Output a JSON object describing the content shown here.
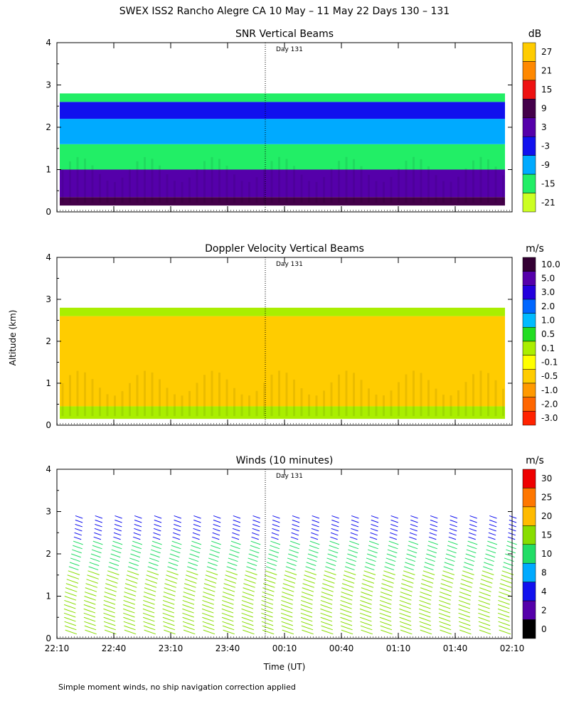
{
  "title": "SWEX ISS2 Rancho Alegre CA  10 May – 11 May 22 Days 130 – 131",
  "ylabel": "Altitude (km)",
  "xlabel": "Time (UT)",
  "footnote": "Simple moment winds, no ship navigation correction applied",
  "day_marker": "Day 131",
  "chart_data": [
    {
      "type": "heatmap",
      "title": "SNR Vertical Beams",
      "unit": "dB",
      "y_ticks": [
        "0",
        "1",
        "2",
        "3",
        "4"
      ],
      "ylim": [
        0,
        4
      ],
      "x_ticks": [
        "22:10",
        "22:40",
        "23:10",
        "23:40",
        "00:10",
        "00:40",
        "01:10",
        "01:40",
        "02:10"
      ],
      "colorbar_labels": [
        "27",
        "21",
        "15",
        "9",
        "3",
        "-3",
        "-9",
        "-15",
        "-21"
      ],
      "colorbar_colors": [
        "#ffcc00",
        "#ff8800",
        "#ee1111",
        "#44004a",
        "#5500aa",
        "#1111ee",
        "#00aaff",
        "#22ee66",
        "#ccff22"
      ],
      "data_top_km": 2.8,
      "data_bottom_km": 0.15,
      "layers": [
        {
          "km_from": 0.15,
          "km_to": 0.35,
          "value_db": 9
        },
        {
          "km_from": 0.35,
          "km_to": 1.0,
          "value_db": 3
        },
        {
          "km_from": 1.0,
          "km_to": 1.6,
          "value_db": -15
        },
        {
          "km_from": 1.6,
          "km_to": 2.2,
          "value_db": -9
        },
        {
          "km_from": 2.2,
          "km_to": 2.6,
          "value_db": -3
        },
        {
          "km_from": 2.6,
          "km_to": 2.8,
          "value_db": -15
        }
      ]
    },
    {
      "type": "heatmap",
      "title": "Doppler Velocity Vertical Beams",
      "unit": "m/s",
      "y_ticks": [
        "0",
        "1",
        "2",
        "3",
        "4"
      ],
      "ylim": [
        0,
        4
      ],
      "x_ticks": [
        "22:10",
        "22:40",
        "23:10",
        "23:40",
        "00:10",
        "00:40",
        "01:10",
        "01:40",
        "02:10"
      ],
      "colorbar_labels": [
        "10.0",
        "5.0",
        "3.0",
        "2.0",
        "1.0",
        "0.5",
        "0.1",
        "-0.1",
        "-0.5",
        "-1.0",
        "-2.0",
        "-3.0"
      ],
      "colorbar_colors": [
        "#330033",
        "#5500aa",
        "#2200dd",
        "#0066ff",
        "#00bbff",
        "#22dd22",
        "#aaee00",
        "#ffff00",
        "#ffcc00",
        "#ff9900",
        "#ff6600",
        "#ff2200"
      ],
      "data_top_km": 2.8,
      "data_bottom_km": 0.15,
      "layers": [
        {
          "km_from": 0.15,
          "km_to": 0.45,
          "value_ms": 0.0
        },
        {
          "km_from": 0.45,
          "km_to": 2.6,
          "value_ms": -0.5
        },
        {
          "km_from": 2.6,
          "km_to": 2.8,
          "value_ms": 0.1
        }
      ]
    },
    {
      "type": "scatter",
      "title": "Winds (10 minutes)",
      "unit": "m/s",
      "y_ticks": [
        "0",
        "1",
        "2",
        "3",
        "4"
      ],
      "ylim": [
        0,
        4
      ],
      "x_ticks": [
        "22:10",
        "22:40",
        "23:10",
        "23:40",
        "00:10",
        "00:40",
        "01:10",
        "01:40",
        "02:10"
      ],
      "colorbar_labels": [
        "30",
        "25",
        "20",
        "15",
        "10",
        "8",
        "4",
        "2",
        "0"
      ],
      "colorbar_colors": [
        "#ee0000",
        "#ff7700",
        "#ffbb00",
        "#88dd00",
        "#22dd66",
        "#00aaff",
        "#1111ee",
        "#5500aa",
        "#000000"
      ],
      "profile_times": [
        "22:20",
        "22:30",
        "22:40",
        "22:50",
        "23:00",
        "23:10",
        "23:20",
        "23:30",
        "23:40",
        "23:50",
        "00:00",
        "00:10",
        "00:20",
        "00:30",
        "00:40",
        "00:50",
        "01:00",
        "01:10",
        "01:20",
        "01:30",
        "01:40",
        "01:50",
        "02:00"
      ],
      "profile_top_km": 2.9,
      "profile_bottom_km": 0.2,
      "wind_speed_layers_ms": [
        {
          "km_from": 0.2,
          "km_to": 1.7,
          "speed": 15
        },
        {
          "km_from": 1.7,
          "km_to": 2.4,
          "speed": 10
        },
        {
          "km_from": 2.4,
          "km_to": 2.9,
          "speed": 4
        }
      ]
    }
  ]
}
